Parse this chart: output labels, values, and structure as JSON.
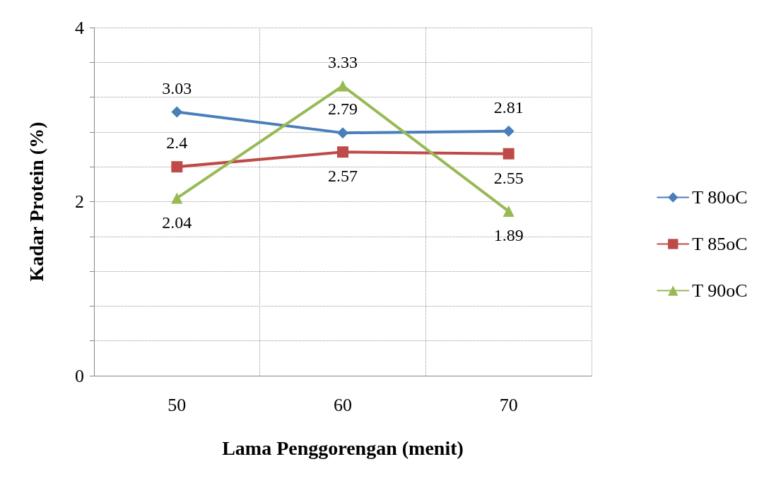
{
  "chart_data": {
    "type": "line",
    "xlabel": "Lama Penggorengan (menit)",
    "ylabel": "Kadar Protein (%)",
    "categories": [
      "50",
      "60",
      "70"
    ],
    "series": [
      {
        "name": "T 80oC",
        "color": "#4a7ebb",
        "values": [
          3.03,
          2.79,
          2.81
        ],
        "marker": "diamond"
      },
      {
        "name": "T 85oC",
        "color": "#be4b48",
        "values": [
          2.4,
          2.57,
          2.55
        ],
        "marker": "square"
      },
      {
        "name": "T 90oC",
        "color": "#98b954",
        "values": [
          2.04,
          3.33,
          1.89
        ],
        "marker": "triangle"
      }
    ],
    "ylim": [
      0,
      4
    ],
    "yticks": [
      0,
      {
        "value": 0.4,
        "label": null
      },
      {
        "value": 0.8,
        "label": null
      },
      {
        "value": 1.2,
        "label": null
      },
      {
        "value": 1.6,
        "label": null
      },
      2,
      {
        "value": 2.4,
        "label": null
      },
      {
        "value": 2.8,
        "label": null
      },
      {
        "value": 3.2,
        "label": null
      },
      {
        "value": 3.6,
        "label": null
      },
      4
    ],
    "grid": true,
    "legend": "right",
    "data_labels": true,
    "line_style": "solid"
  }
}
